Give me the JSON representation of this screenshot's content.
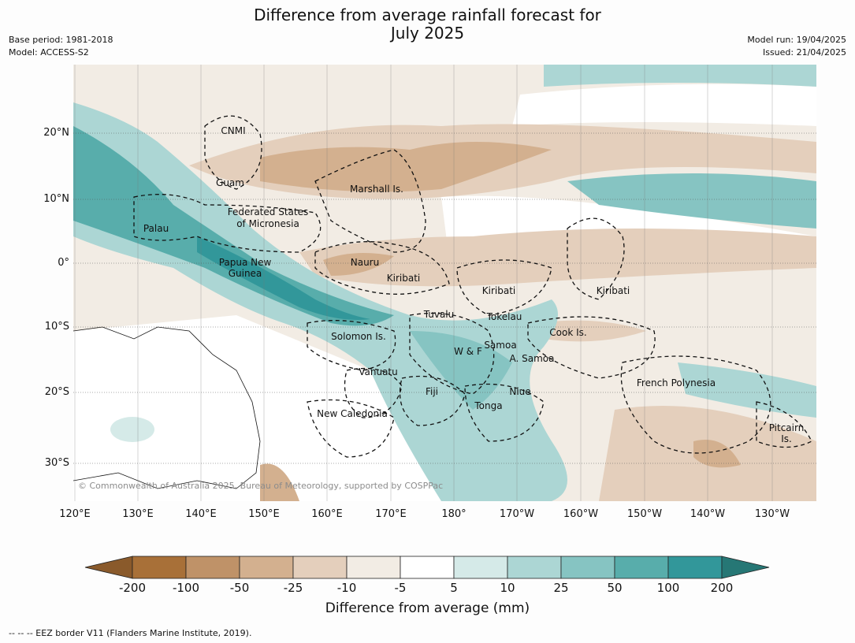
{
  "title_line1": "Difference from average rainfall forecast for",
  "title_line2": "July 2025",
  "meta_left": [
    "Base period: 1981-2018",
    "Model: ACCESS-S2"
  ],
  "meta_right": [
    "Model run: 19/04/2025",
    "Issued: 21/04/2025"
  ],
  "lon_labels": [
    "120°E",
    "130°E",
    "140°E",
    "150°E",
    "160°E",
    "170°E",
    "180°",
    "170°W",
    "160°W",
    "150°W",
    "140°W",
    "130°W"
  ],
  "lat_labels": [
    "20°N",
    "10°N",
    "0°",
    "10°S",
    "20°S",
    "30°S"
  ],
  "places": [
    "CNMI",
    "Guam",
    "Marshall Is.",
    "Federated States",
    "of Micronesia",
    "Palau",
    "Papua New",
    "Guinea",
    "Nauru",
    "Kiribati",
    "Kiribati",
    "Kiribati",
    "Tuvalu",
    "Tokelau",
    "Solomon Is.",
    "W & F",
    "Samoa",
    "A. Samoa",
    "Cook Is.",
    "Vanuatu",
    "Fiji",
    "Niue",
    "Tonga",
    "New Caledonia",
    "French Polynesia",
    "Pitcairn",
    "Is."
  ],
  "copyright": "© Commonwealth of Australia 2025, Bureau of Meteorology, supported by COSPPac",
  "colorbar": {
    "ticks": [
      "-200",
      "-100",
      "-50",
      "-25",
      "-10",
      "-5",
      "5",
      "10",
      "25",
      "50",
      "100",
      "200"
    ],
    "colors": [
      "#8a5a2b",
      "#a87038",
      "#bf9268",
      "#d3b08f",
      "#e4cfbc",
      "#f2ece4",
      "#ffffff",
      "#d5eae8",
      "#acd6d4",
      "#86c4c2",
      "#58adab",
      "#32979a",
      "#267775"
    ],
    "label": "Difference from average (mm)"
  },
  "footer": "--  --  -- EEZ border V11 (Flanders Marine Institute, 2019)."
}
